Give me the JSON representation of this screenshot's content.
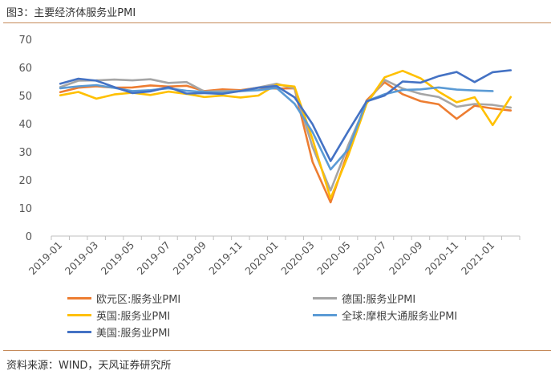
{
  "title": "图3：主要经济体服务业PMI",
  "source": "资料来源：WIND，天风证券研究所",
  "chart_data": {
    "type": "line",
    "title": "",
    "xlabel": "",
    "ylabel": "",
    "ylim": [
      0,
      70
    ],
    "yticks": [
      0,
      10,
      20,
      30,
      40,
      50,
      60,
      70
    ],
    "x": [
      "2019-01",
      "2019-02",
      "2019-03",
      "2019-04",
      "2019-05",
      "2019-06",
      "2019-07",
      "2019-08",
      "2019-09",
      "2019-10",
      "2019-11",
      "2019-12",
      "2020-01",
      "2020-02",
      "2020-03",
      "2020-04",
      "2020-05",
      "2020-06",
      "2020-07",
      "2020-08",
      "2020-09",
      "2020-10",
      "2020-11",
      "2020-12",
      "2021-01",
      "2021-02"
    ],
    "xtick_labels": [
      "2019-01",
      "2019-03",
      "2019-05",
      "2019-07",
      "2019-09",
      "2019-11",
      "2020-01",
      "2020-03",
      "2020-05",
      "2020-07",
      "2020-09",
      "2020-11",
      "2021-01"
    ],
    "grid": false,
    "legend_position": "bottom",
    "series": [
      {
        "name": "欧元区:服务业PMI",
        "color": "#ED7D31",
        "values": [
          51.2,
          52.8,
          53.3,
          52.8,
          52.9,
          53.6,
          53.2,
          53.5,
          51.6,
          52.2,
          51.9,
          52.8,
          52.5,
          52.6,
          26.4,
          12.0,
          30.5,
          48.3,
          54.7,
          50.5,
          48.0,
          46.9,
          41.7,
          46.4,
          45.4,
          44.7
        ]
      },
      {
        "name": "德国:服务业PMI",
        "color": "#A5A5A5",
        "values": [
          53.0,
          55.3,
          55.4,
          55.7,
          55.4,
          55.8,
          54.5,
          54.8,
          51.4,
          51.6,
          51.7,
          52.9,
          54.2,
          52.5,
          31.7,
          16.2,
          32.6,
          47.3,
          55.6,
          52.5,
          50.6,
          49.5,
          46.0,
          47.0,
          46.7,
          45.7
        ]
      },
      {
        "name": "英国:服务业PMI",
        "color": "#FFC000",
        "values": [
          50.1,
          51.3,
          48.9,
          50.4,
          51.0,
          50.2,
          51.4,
          50.6,
          49.5,
          50.0,
          49.3,
          50.0,
          53.9,
          53.2,
          34.5,
          13.4,
          29.0,
          47.1,
          56.5,
          58.8,
          56.1,
          51.4,
          47.6,
          49.4,
          39.5,
          49.5
        ]
      },
      {
        "name": "全球:摩根大通服务业PMI",
        "color": "#5B9BD5",
        "values": [
          52.6,
          53.3,
          53.7,
          52.7,
          51.6,
          51.9,
          52.6,
          51.7,
          51.3,
          51.0,
          51.6,
          51.9,
          52.7,
          47.1,
          37.0,
          23.7,
          31.0,
          48.0,
          50.5,
          52.0,
          52.2,
          52.9,
          52.1,
          51.8,
          51.6,
          null
        ]
      },
      {
        "name": "美国:服务业PMI",
        "color": "#4472C4",
        "values": [
          54.2,
          56.0,
          55.3,
          53.0,
          50.9,
          51.5,
          53.0,
          50.7,
          50.9,
          50.6,
          51.6,
          52.8,
          53.4,
          49.4,
          39.8,
          26.7,
          37.5,
          47.9,
          50.0,
          55.0,
          54.6,
          56.9,
          58.4,
          54.8,
          58.3,
          59.0
        ]
      }
    ]
  }
}
